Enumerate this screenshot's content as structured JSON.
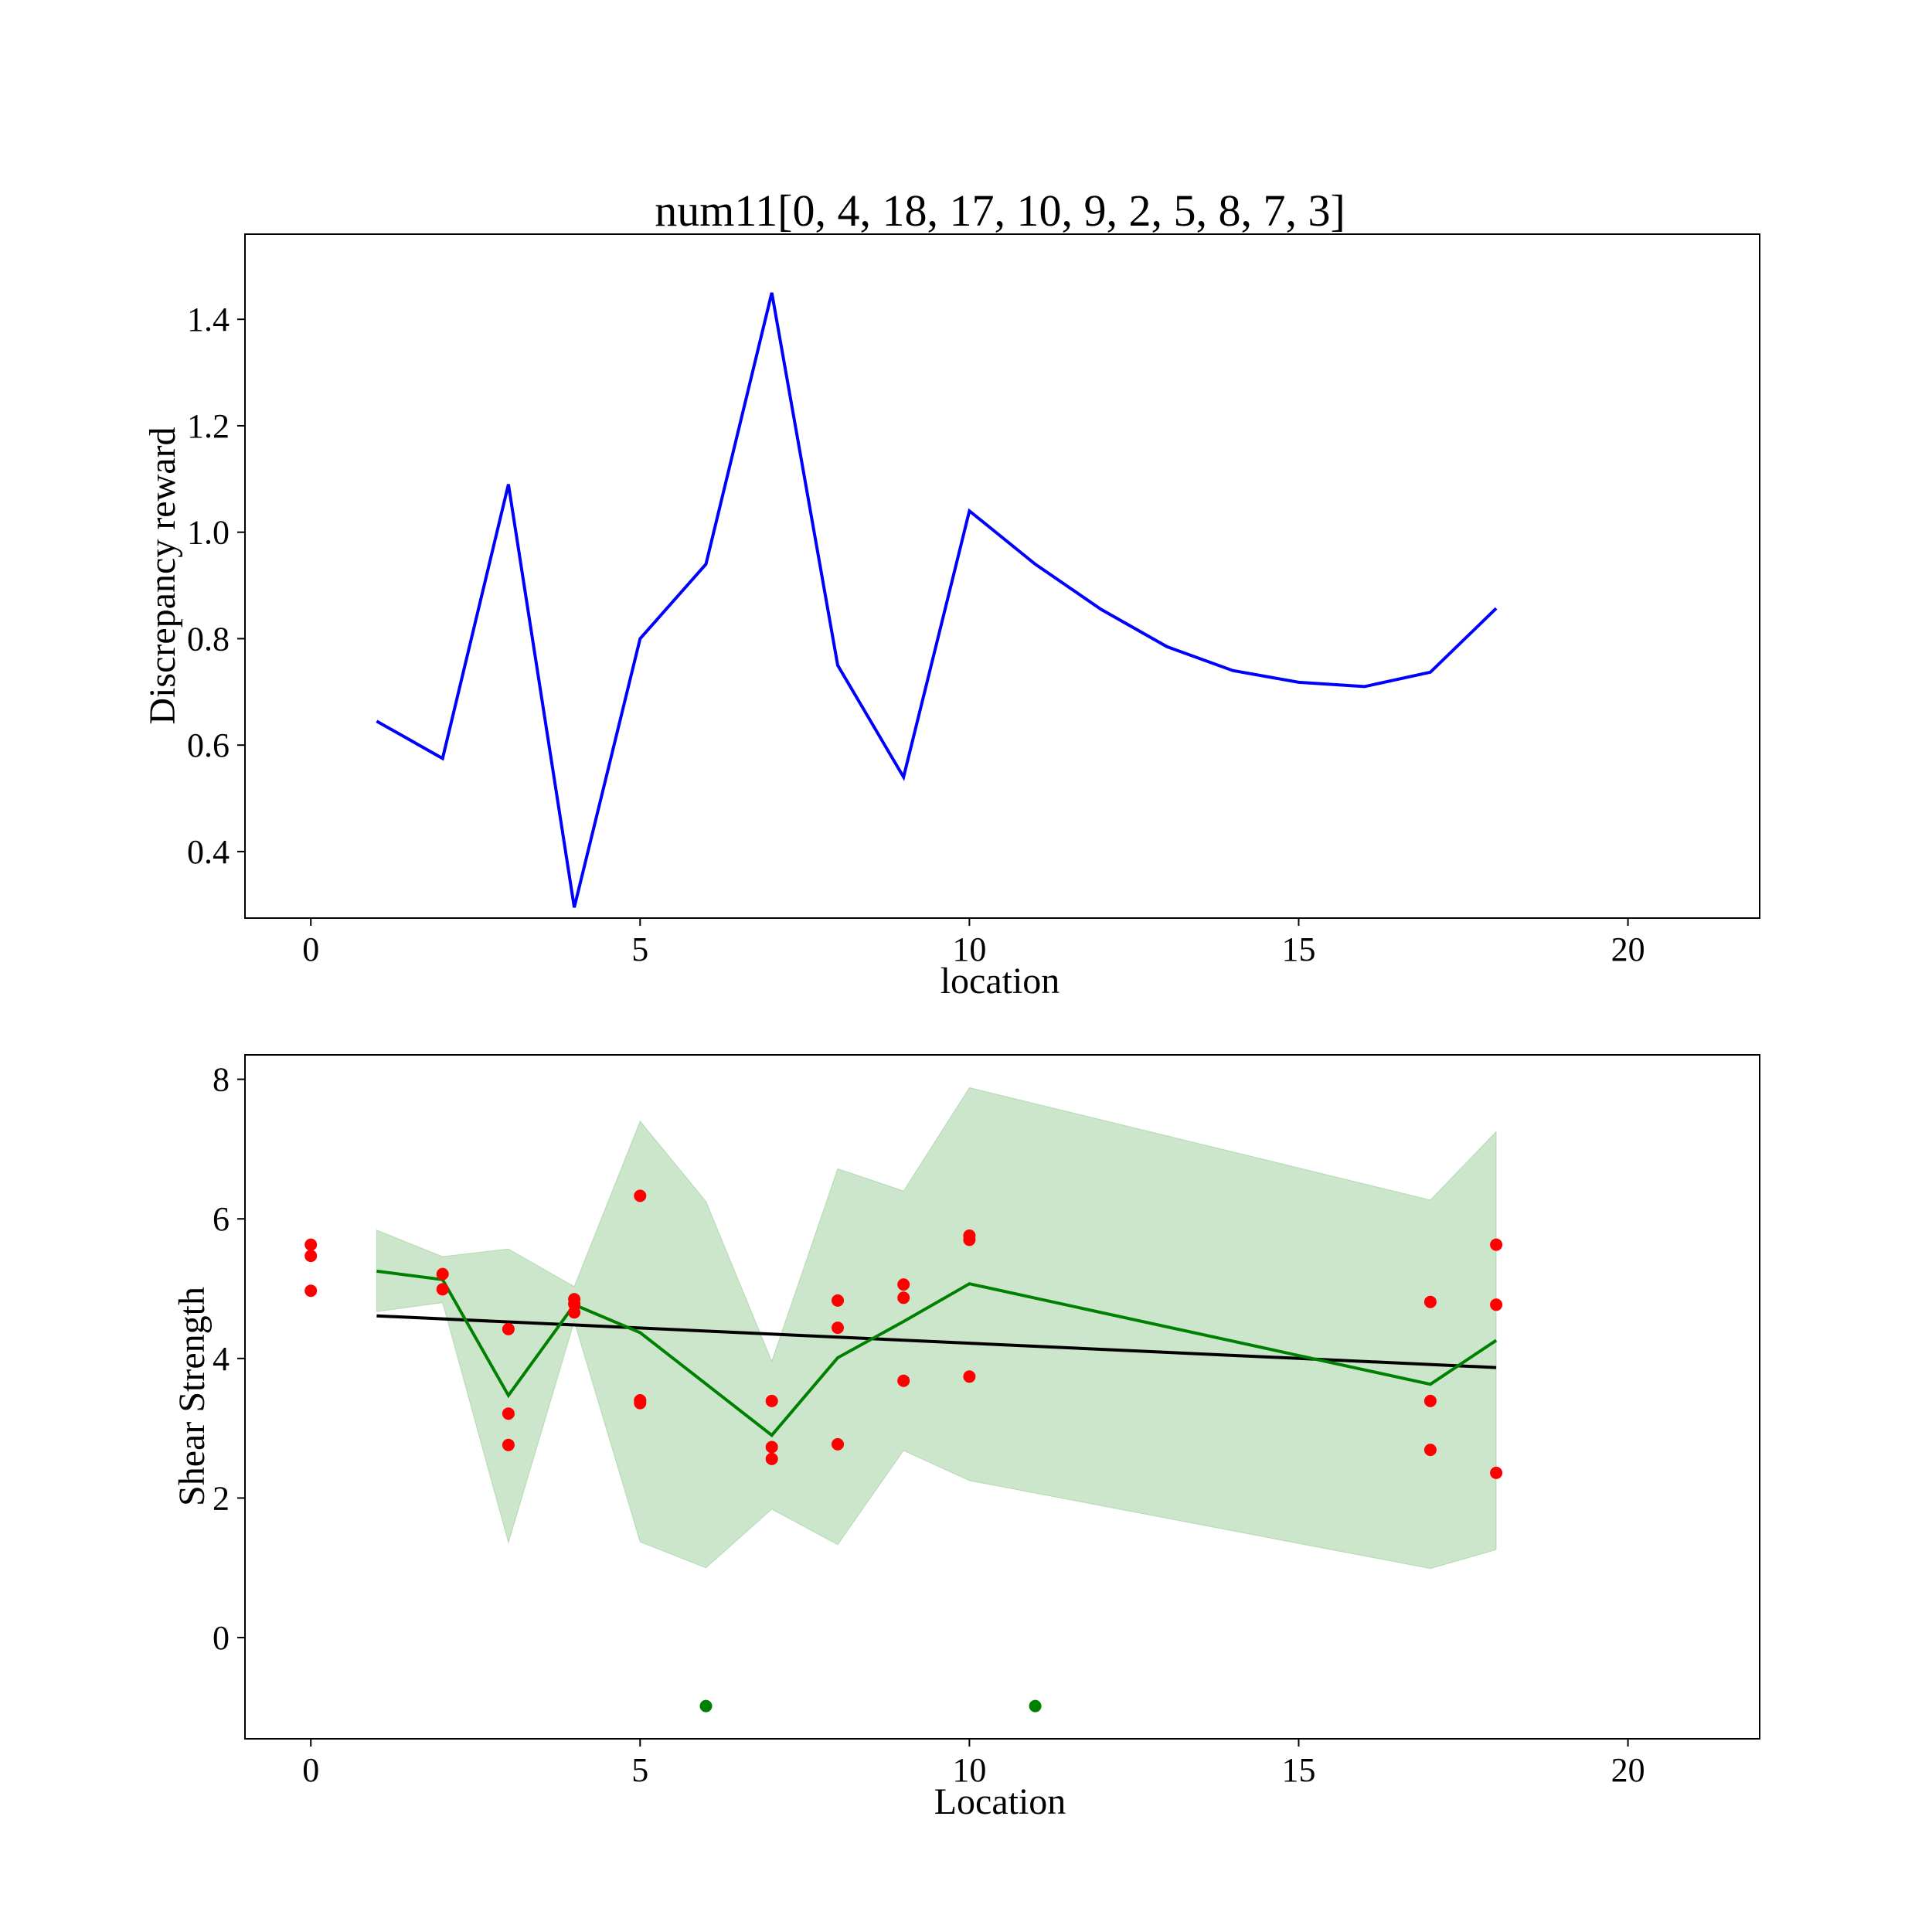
{
  "chart_data": [
    {
      "type": "line",
      "title": "num11[0, 4, 18, 17, 10, 9, 2, 5, 8, 7, 3]",
      "xlabel": "location",
      "ylabel": "Discrepancy reward",
      "xlim": [
        -1,
        22
      ],
      "ylim": [
        0.275,
        1.56
      ],
      "xticks": [
        0,
        5,
        10,
        15,
        20
      ],
      "yticks": [
        0.4,
        0.6,
        0.8,
        1.0,
        1.2,
        1.4
      ],
      "ytick_labels": [
        "0.4",
        "0.6",
        "0.8",
        "1.0",
        "1.2",
        "1.4"
      ],
      "grid": false,
      "colors": {
        "line": "#0000ff"
      },
      "series": [
        {
          "x": [
            1,
            2,
            3,
            4,
            5,
            6,
            7,
            8,
            9,
            10,
            11,
            12,
            13,
            14,
            15,
            16,
            17,
            18
          ],
          "values": [
            0.645,
            0.575,
            1.09,
            0.295,
            0.8,
            0.94,
            1.45,
            0.75,
            0.54,
            1.04,
            0.94,
            0.855,
            0.785,
            0.74,
            0.718,
            0.71,
            0.737,
            0.857
          ]
        }
      ]
    },
    {
      "type": "scatter",
      "title": "",
      "xlabel": "Location",
      "ylabel": "Shear Strength",
      "xlim": [
        -1,
        22
      ],
      "ylim": [
        -1.45,
        8.35
      ],
      "xticks": [
        0,
        5,
        10,
        15,
        20
      ],
      "yticks": [
        0,
        2,
        4,
        6,
        8
      ],
      "ytick_labels": [
        "0",
        "2",
        "4",
        "6",
        "8"
      ],
      "grid": false,
      "colors": {
        "points": "#ff0000",
        "mean": "#008000",
        "band": "#008000",
        "trend": "#000000",
        "markers": "#008000"
      },
      "observations": {
        "x": [
          0,
          0,
          0,
          2,
          2,
          3,
          3,
          3,
          4,
          4,
          4,
          5,
          5,
          5,
          7,
          7,
          7,
          8,
          8,
          8,
          9,
          9,
          9,
          10,
          10,
          10,
          17,
          17,
          17,
          18,
          18,
          18
        ],
        "y": [
          5.63,
          5.47,
          4.97,
          5.21,
          4.99,
          4.42,
          3.21,
          2.76,
          4.85,
          4.78,
          4.66,
          6.33,
          3.4,
          3.36,
          3.39,
          2.73,
          2.56,
          4.83,
          4.44,
          2.77,
          5.06,
          4.87,
          3.68,
          5.76,
          5.7,
          3.74,
          4.81,
          3.39,
          2.69,
          5.63,
          4.77,
          2.36
        ]
      },
      "mean_line": {
        "x": [
          1,
          2,
          3,
          4,
          5,
          7,
          8,
          9,
          10,
          17,
          18
        ],
        "y": [
          5.25,
          5.13,
          3.47,
          4.77,
          4.37,
          2.9,
          4.01,
          4.53,
          5.07,
          3.63,
          4.26
        ]
      },
      "band": {
        "x": [
          1,
          2,
          3,
          4,
          5,
          6,
          7,
          8,
          9,
          10,
          17,
          18
        ],
        "upper": [
          5.84,
          5.46,
          5.57,
          5.03,
          7.4,
          6.25,
          3.96,
          6.72,
          6.4,
          7.88,
          6.27,
          7.25
        ],
        "lower": [
          4.67,
          4.8,
          1.36,
          4.53,
          1.37,
          1.0,
          1.84,
          1.33,
          2.68,
          2.25,
          0.99,
          1.26
        ]
      },
      "trend_line": {
        "x": [
          1,
          18
        ],
        "y": [
          4.61,
          3.87
        ]
      },
      "marker_points": {
        "x": [
          6,
          11
        ],
        "y": [
          -0.98,
          -0.98
        ]
      }
    }
  ]
}
